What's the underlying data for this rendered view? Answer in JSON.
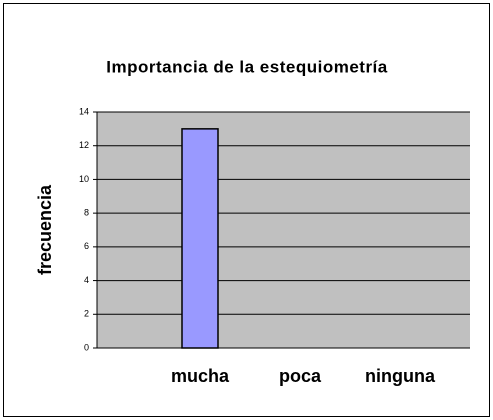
{
  "chart_data": {
    "type": "bar",
    "title": "Importancia de la estequiometría",
    "y_label": "frecuencia",
    "categories": [
      "mucha",
      "poca",
      "ninguna"
    ],
    "values": [
      13,
      0,
      0
    ],
    "color": "#9999ff",
    "ylim": [
      0,
      14
    ],
    "yticks": [
      0,
      2,
      4,
      6,
      8,
      10,
      12,
      14
    ],
    "grid": true
  }
}
